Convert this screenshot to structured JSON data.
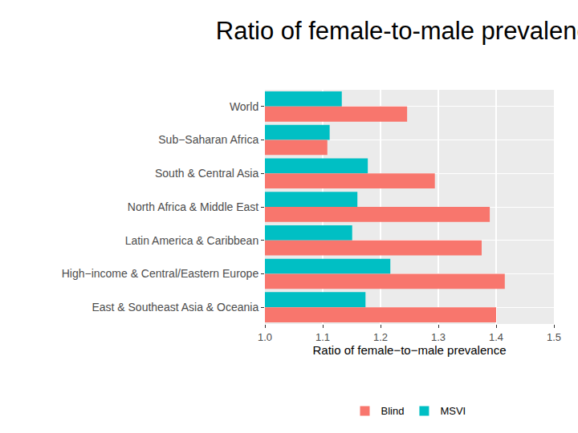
{
  "chart_data": {
    "type": "bar",
    "orientation": "horizontal",
    "title": "Ratio of female-to-male prevalence",
    "x_label": "Ratio of female−to−male prevalence",
    "categories": [
      "World",
      "Sub−Saharan Africa",
      "South & Central Asia",
      "North Africa & Middle East",
      "Latin America & Caribbean",
      "High−income & Central/Eastern Europe",
      "East & Southeast Asia & Oceania"
    ],
    "series": [
      {
        "name": "Blind",
        "color": "#F8766D",
        "values": [
          1.246,
          1.108,
          1.294,
          1.389,
          1.375,
          1.415,
          1.4
        ]
      },
      {
        "name": "MSVI",
        "color": "#00BFC4",
        "values": [
          1.133,
          1.112,
          1.178,
          1.16,
          1.151,
          1.217,
          1.174
        ]
      }
    ],
    "xlim": [
      1,
      1.5
    ],
    "xticks": [
      {
        "value": 1,
        "label": "1.0"
      },
      1.1,
      1.2,
      1.3,
      1.4,
      1.5
    ],
    "grid": true,
    "legend": "bottom"
  }
}
